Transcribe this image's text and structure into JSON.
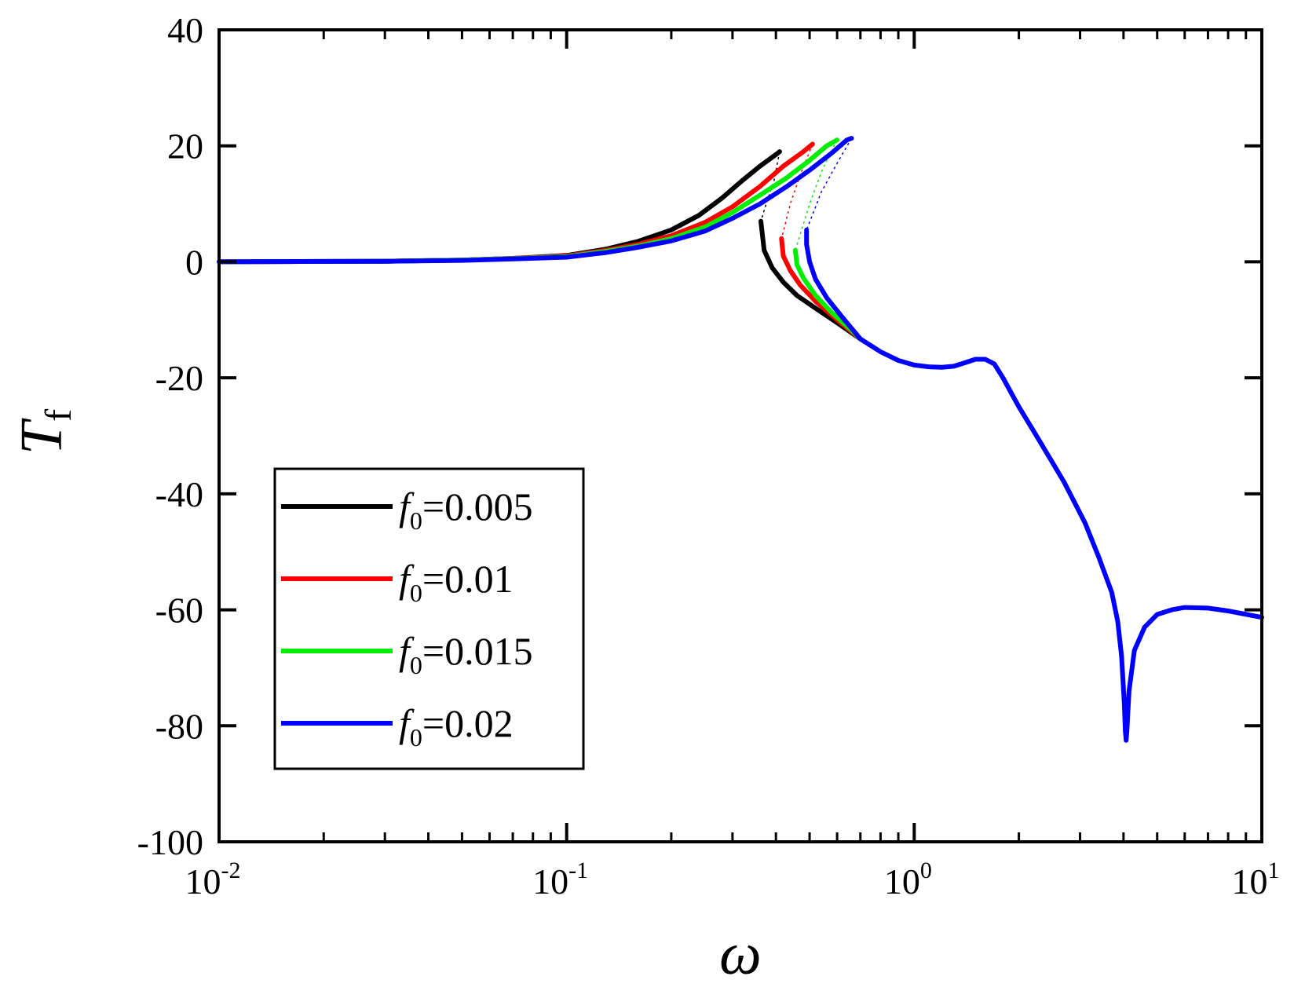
{
  "chart_data": {
    "type": "line",
    "xlabel": "ω",
    "ylabel": "T",
    "ylabel_sub": "f",
    "x_scale": "log",
    "xlim": [
      0.01,
      10
    ],
    "ylim": [
      -100,
      40
    ],
    "x_ticks": [
      {
        "base": "10",
        "exp": "-2",
        "value": 0.01
      },
      {
        "base": "10",
        "exp": "-1",
        "value": 0.1
      },
      {
        "base": "10",
        "exp": "0",
        "value": 1
      },
      {
        "base": "10",
        "exp": "1",
        "value": 10
      }
    ],
    "y_ticks": [
      "40",
      "20",
      "0",
      "-20",
      "-40",
      "-60",
      "-80",
      "-100"
    ],
    "y_tick_values": [
      40,
      20,
      0,
      -20,
      -40,
      -60,
      -80,
      -100
    ],
    "grid": false,
    "legend_position": "lower-left",
    "series": [
      {
        "name": "f0=0.005",
        "legend_var": "f",
        "legend_sub": "0",
        "legend_value": "=0.005",
        "color": "#000000",
        "upper": [
          [
            0.01,
            0
          ],
          [
            0.03,
            0.1
          ],
          [
            0.05,
            0.3
          ],
          [
            0.07,
            0.6
          ],
          [
            0.1,
            1.1
          ],
          [
            0.13,
            2.2
          ],
          [
            0.16,
            3.5
          ],
          [
            0.2,
            5.5
          ],
          [
            0.24,
            8
          ],
          [
            0.28,
            11
          ],
          [
            0.32,
            14
          ],
          [
            0.36,
            16.5
          ],
          [
            0.4,
            18.5
          ],
          [
            0.41,
            19
          ]
        ],
        "unstable": [
          [
            0.41,
            19
          ],
          [
            0.395,
            14
          ],
          [
            0.375,
            10
          ],
          [
            0.362,
            7
          ]
        ],
        "lower": [
          [
            0.362,
            7
          ],
          [
            0.37,
            2
          ],
          [
            0.39,
            -1
          ],
          [
            0.42,
            -3.5
          ],
          [
            0.46,
            -5.8
          ],
          [
            0.52,
            -8
          ],
          [
            0.6,
            -10.5
          ],
          [
            0.7,
            -13.3
          ]
        ]
      },
      {
        "name": "f0=0.01",
        "legend_var": "f",
        "legend_sub": "0",
        "legend_value": "=0.01",
        "color": "#ff0000",
        "upper": [
          [
            0.01,
            0
          ],
          [
            0.03,
            0.1
          ],
          [
            0.05,
            0.3
          ],
          [
            0.07,
            0.6
          ],
          [
            0.1,
            1
          ],
          [
            0.13,
            2
          ],
          [
            0.16,
            3
          ],
          [
            0.2,
            4.5
          ],
          [
            0.25,
            6.8
          ],
          [
            0.3,
            9.5
          ],
          [
            0.36,
            13
          ],
          [
            0.42,
            16.5
          ],
          [
            0.48,
            19
          ],
          [
            0.51,
            20.3
          ]
        ],
        "unstable": [
          [
            0.51,
            20.3
          ],
          [
            0.47,
            15
          ],
          [
            0.44,
            10
          ],
          [
            0.415,
            4
          ]
        ],
        "lower": [
          [
            0.415,
            4
          ],
          [
            0.42,
            1
          ],
          [
            0.44,
            -1.5
          ],
          [
            0.47,
            -4
          ],
          [
            0.52,
            -6.8
          ],
          [
            0.6,
            -10
          ],
          [
            0.7,
            -13.3
          ]
        ]
      },
      {
        "name": "f0=0.015",
        "legend_var": "f",
        "legend_sub": "0",
        "legend_value": "=0.015",
        "color": "#00ee00",
        "upper": [
          [
            0.01,
            0
          ],
          [
            0.03,
            0.1
          ],
          [
            0.05,
            0.3
          ],
          [
            0.07,
            0.55
          ],
          [
            0.1,
            0.9
          ],
          [
            0.13,
            1.8
          ],
          [
            0.16,
            2.7
          ],
          [
            0.2,
            4
          ],
          [
            0.25,
            6
          ],
          [
            0.3,
            8.5
          ],
          [
            0.36,
            11.5
          ],
          [
            0.43,
            14.5
          ],
          [
            0.5,
            17.5
          ],
          [
            0.56,
            20
          ],
          [
            0.6,
            21
          ]
        ],
        "unstable": [
          [
            0.6,
            21
          ],
          [
            0.545,
            16
          ],
          [
            0.5,
            10
          ],
          [
            0.455,
            2
          ]
        ],
        "lower": [
          [
            0.455,
            2
          ],
          [
            0.46,
            -0.5
          ],
          [
            0.48,
            -2.8
          ],
          [
            0.52,
            -5.8
          ],
          [
            0.58,
            -8.8
          ],
          [
            0.66,
            -11.8
          ],
          [
            0.7,
            -13.3
          ]
        ]
      },
      {
        "name": "f0=0.02",
        "legend_var": "f",
        "legend_sub": "0",
        "legend_value": "=0.02",
        "color": "#0000ff",
        "upper": [
          [
            0.01,
            0
          ],
          [
            0.03,
            0.1
          ],
          [
            0.05,
            0.25
          ],
          [
            0.07,
            0.5
          ],
          [
            0.1,
            0.8
          ],
          [
            0.13,
            1.6
          ],
          [
            0.16,
            2.5
          ],
          [
            0.2,
            3.6
          ],
          [
            0.25,
            5.3
          ],
          [
            0.3,
            7.5
          ],
          [
            0.36,
            10
          ],
          [
            0.43,
            13
          ],
          [
            0.5,
            15.8
          ],
          [
            0.58,
            18.8
          ],
          [
            0.64,
            21
          ],
          [
            0.66,
            21.3
          ]
        ],
        "unstable": [
          [
            0.66,
            21.3
          ],
          [
            0.6,
            17
          ],
          [
            0.54,
            12
          ],
          [
            0.49,
            5.5
          ]
        ],
        "lower": [
          [
            0.49,
            5.5
          ],
          [
            0.49,
            3
          ],
          [
            0.5,
            0
          ],
          [
            0.52,
            -3
          ],
          [
            0.56,
            -6.2
          ],
          [
            0.62,
            -9.5
          ],
          [
            0.7,
            -13.3
          ],
          [
            0.8,
            -15.5
          ],
          [
            0.9,
            -17
          ],
          [
            1,
            -17.8
          ],
          [
            1.1,
            -18.1
          ],
          [
            1.2,
            -18.2
          ],
          [
            1.3,
            -18
          ],
          [
            1.4,
            -17.4
          ],
          [
            1.5,
            -16.8
          ],
          [
            1.6,
            -16.8
          ],
          [
            1.7,
            -17.6
          ],
          [
            1.8,
            -20
          ],
          [
            2,
            -25
          ],
          [
            2.3,
            -31
          ],
          [
            2.7,
            -38
          ],
          [
            3.1,
            -45
          ],
          [
            3.4,
            -51
          ],
          [
            3.7,
            -57
          ],
          [
            3.85,
            -62
          ],
          [
            3.95,
            -68
          ],
          [
            4.02,
            -76
          ],
          [
            4.05,
            -81
          ],
          [
            4.07,
            -82.5
          ],
          [
            4.09,
            -81
          ],
          [
            4.15,
            -74
          ],
          [
            4.3,
            -67
          ],
          [
            4.6,
            -63
          ],
          [
            5,
            -60.8
          ],
          [
            5.5,
            -60
          ],
          [
            6,
            -59.6
          ],
          [
            7,
            -59.7
          ],
          [
            8,
            -60.2
          ],
          [
            10,
            -61.3
          ]
        ]
      }
    ]
  }
}
